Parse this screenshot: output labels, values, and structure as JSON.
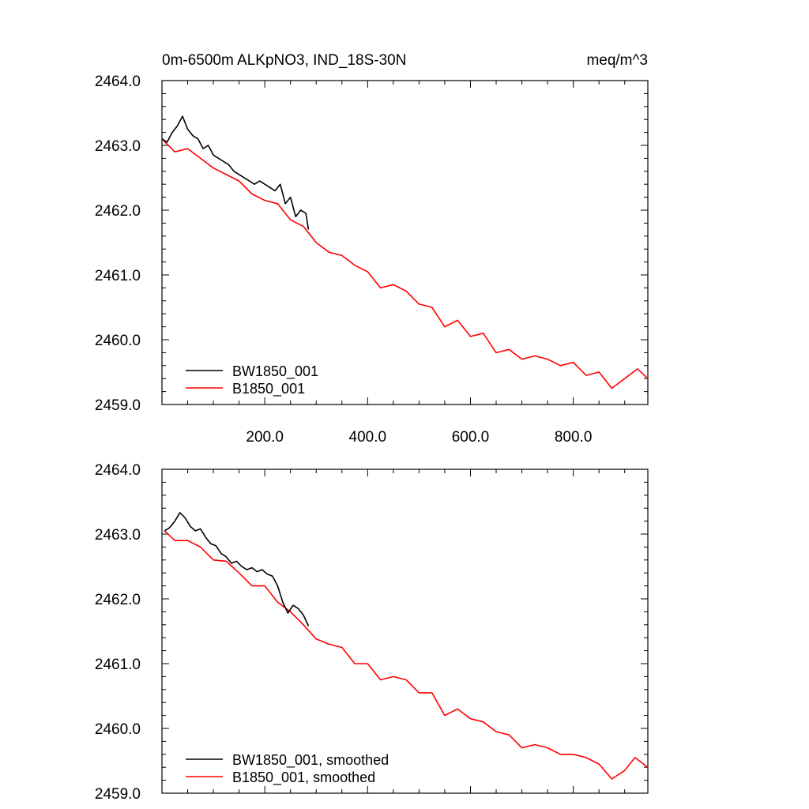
{
  "chart_data": [
    {
      "type": "line",
      "title_left": "0m-6500m ALKpNO3, IND_18S-30N",
      "title_right": "meq/m^3",
      "xlim": [
        0,
        945
      ],
      "ylim": [
        2459.0,
        2464.0
      ],
      "yticks": [
        "2464.0",
        "2463.0",
        "2462.0",
        "2461.0",
        "2460.0",
        "2459.0"
      ],
      "xticks": [
        "200.0",
        "400.0",
        "600.0",
        "800.0"
      ],
      "series": [
        {
          "name": "BW1850_001",
          "color": "#000000",
          "x": [
            0,
            10,
            20,
            30,
            40,
            50,
            60,
            70,
            80,
            90,
            100,
            110,
            120,
            130,
            140,
            150,
            160,
            170,
            180,
            190,
            200,
            210,
            220,
            230,
            240,
            250,
            260,
            270,
            280,
            285
          ],
          "y": [
            2463.1,
            2463.05,
            2463.2,
            2463.3,
            2463.45,
            2463.25,
            2463.15,
            2463.1,
            2462.95,
            2463.0,
            2462.85,
            2462.8,
            2462.75,
            2462.7,
            2462.6,
            2462.55,
            2462.5,
            2462.45,
            2462.4,
            2462.45,
            2462.4,
            2462.35,
            2462.3,
            2462.4,
            2462.1,
            2462.2,
            2461.9,
            2462.0,
            2461.95,
            2461.7
          ]
        },
        {
          "name": "B1850_001",
          "color": "#ff0000",
          "x": [
            0,
            25,
            50,
            75,
            100,
            125,
            150,
            175,
            200,
            225,
            250,
            275,
            300,
            325,
            350,
            375,
            400,
            425,
            450,
            475,
            500,
            525,
            550,
            575,
            600,
            625,
            650,
            675,
            700,
            725,
            750,
            775,
            800,
            825,
            850,
            875,
            900,
            925,
            945
          ],
          "y": [
            2463.1,
            2462.9,
            2462.95,
            2462.8,
            2462.65,
            2462.55,
            2462.45,
            2462.25,
            2462.15,
            2462.1,
            2461.85,
            2461.75,
            2461.5,
            2461.35,
            2461.3,
            2461.15,
            2461.05,
            2460.8,
            2460.85,
            2460.75,
            2460.55,
            2460.5,
            2460.2,
            2460.3,
            2460.05,
            2460.1,
            2459.8,
            2459.85,
            2459.7,
            2459.75,
            2459.7,
            2459.6,
            2459.65,
            2459.45,
            2459.5,
            2459.25,
            2459.4,
            2459.55,
            2459.4
          ]
        }
      ]
    },
    {
      "type": "line",
      "xlim": [
        0,
        945
      ],
      "ylim": [
        2459.0,
        2464.0
      ],
      "yticks": [
        "2464.0",
        "2463.0",
        "2462.0",
        "2461.0",
        "2460.0",
        "2459.0"
      ],
      "series": [
        {
          "name": "BW1850_001, smoothed",
          "color": "#000000",
          "x": [
            5,
            15,
            25,
            35,
            45,
            55,
            65,
            75,
            85,
            95,
            105,
            115,
            125,
            135,
            145,
            155,
            165,
            175,
            185,
            195,
            205,
            215,
            225,
            235,
            245,
            255,
            265,
            275,
            285
          ],
          "y": [
            2463.05,
            2463.1,
            2463.2,
            2463.33,
            2463.25,
            2463.12,
            2463.05,
            2463.08,
            2462.95,
            2462.85,
            2462.82,
            2462.7,
            2462.65,
            2462.55,
            2462.58,
            2462.5,
            2462.45,
            2462.48,
            2462.42,
            2462.45,
            2462.38,
            2462.35,
            2462.2,
            2461.95,
            2461.78,
            2461.9,
            2461.85,
            2461.75,
            2461.58
          ]
        },
        {
          "name": "B1850_001, smoothed",
          "color": "#ff0000",
          "x": [
            5,
            25,
            50,
            75,
            100,
            125,
            150,
            175,
            200,
            225,
            250,
            275,
            300,
            325,
            350,
            375,
            400,
            425,
            450,
            475,
            500,
            525,
            550,
            575,
            600,
            625,
            650,
            675,
            700,
            725,
            750,
            775,
            800,
            825,
            850,
            875,
            900,
            920,
            945
          ],
          "y": [
            2463.05,
            2462.9,
            2462.9,
            2462.8,
            2462.6,
            2462.58,
            2462.4,
            2462.2,
            2462.2,
            2461.95,
            2461.8,
            2461.6,
            2461.38,
            2461.3,
            2461.25,
            2461.0,
            2461.0,
            2460.75,
            2460.8,
            2460.75,
            2460.55,
            2460.55,
            2460.2,
            2460.3,
            2460.15,
            2460.1,
            2459.95,
            2459.9,
            2459.7,
            2459.75,
            2459.7,
            2459.6,
            2459.6,
            2459.55,
            2459.45,
            2459.22,
            2459.35,
            2459.55,
            2459.4
          ]
        }
      ]
    }
  ]
}
